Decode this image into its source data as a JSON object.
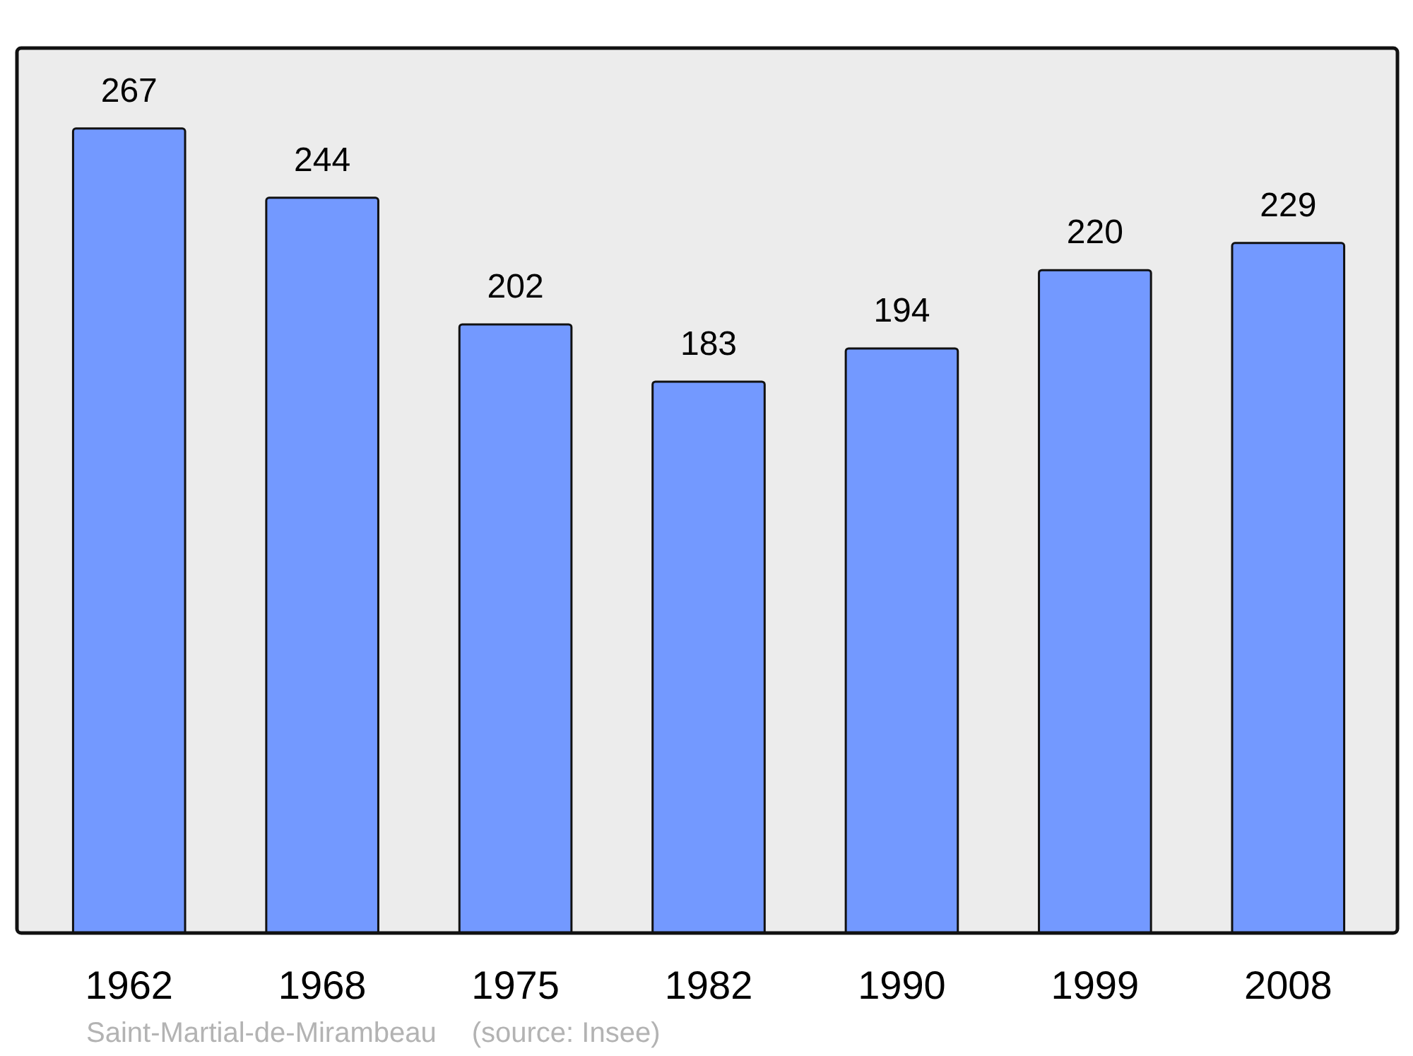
{
  "chart_data": {
    "type": "bar",
    "categories": [
      "1962",
      "1968",
      "1975",
      "1982",
      "1990",
      "1999",
      "2008"
    ],
    "values": [
      267,
      244,
      202,
      183,
      194,
      220,
      229
    ],
    "color": "#7399ff",
    "data_labels": true,
    "annotations": [
      "Saint-Martial-de-Mirambeau",
      "(source: Insee)"
    ]
  }
}
